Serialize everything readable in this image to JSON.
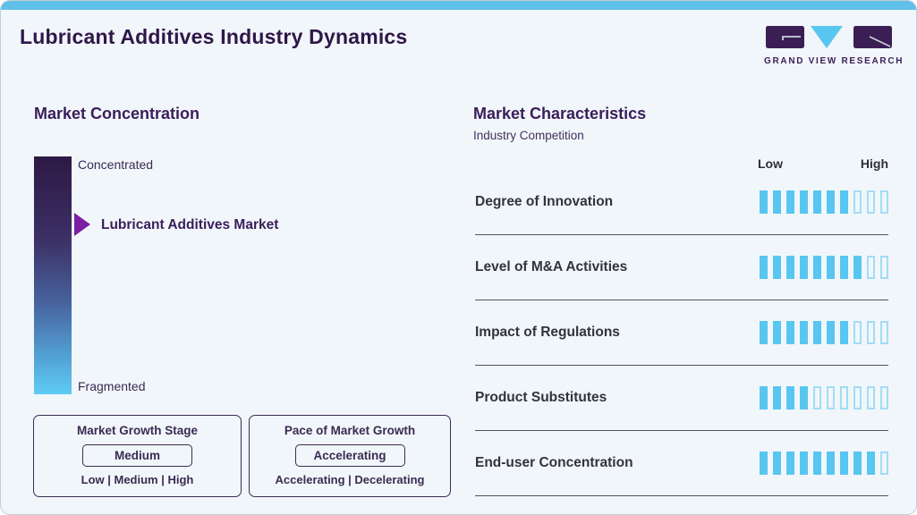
{
  "header": {
    "title": "Lubricant Additives Industry Dynamics",
    "logo_brand": "GRAND VIEW RESEARCH"
  },
  "market_concentration": {
    "heading": "Market Concentration",
    "scale_top_label": "Concentrated",
    "scale_bottom_label": "Fragmented",
    "marker_label": "Lubricant Additives Market",
    "growth_stage": {
      "title": "Market Growth Stage",
      "selected_value": "Medium",
      "options_line": "Low | Medium | High"
    },
    "growth_pace": {
      "title": "Pace of Market Growth",
      "selected_value": "Accelerating",
      "options_line": "Accelerating | Decelerating"
    }
  },
  "market_characteristics": {
    "heading": "Market Characteristics",
    "subheading": "Industry Competition",
    "scale_low_label": "Low",
    "scale_high_label": "High",
    "rows": [
      {
        "label": "Degree of Innovation",
        "value": 7,
        "max": 10
      },
      {
        "label": "Level of M&A Activities",
        "value": 8,
        "max": 10
      },
      {
        "label": "Impact of Regulations",
        "value": 7,
        "max": 10
      },
      {
        "label": "Product Substitutes",
        "value": 4,
        "max": 10
      },
      {
        "label": "End-user Concentration",
        "value": 9,
        "max": 10
      }
    ]
  },
  "chart_data": {
    "type": "bar",
    "title": "Market Characteristics",
    "subtitle": "Industry Competition",
    "categories": [
      "Degree of Innovation",
      "Level of M&A Activities",
      "Impact of Regulations",
      "Product Substitutes",
      "End-user Concentration"
    ],
    "values": [
      7,
      8,
      7,
      4,
      9
    ],
    "xlabel": "",
    "ylabel": "",
    "scale": {
      "min_label": "Low",
      "max_label": "High",
      "max": 10
    },
    "legend": "none",
    "note": "Each row shows filled segments out of 10 between Low and High"
  },
  "colors": {
    "accent_blue": "#58c6f0",
    "empty_bar_outline": "#a0ddf6",
    "top_strip": "#5fc0e9",
    "heading_purple": "#3a1d5a",
    "title_purple": "#2f1749",
    "arrow_purple": "#7b1fa2",
    "card_background": "#f1f6fa",
    "divider_gray": "#53535d",
    "gradient_top": "#2d1945",
    "gradient_bottom": "#5ecdf5"
  }
}
